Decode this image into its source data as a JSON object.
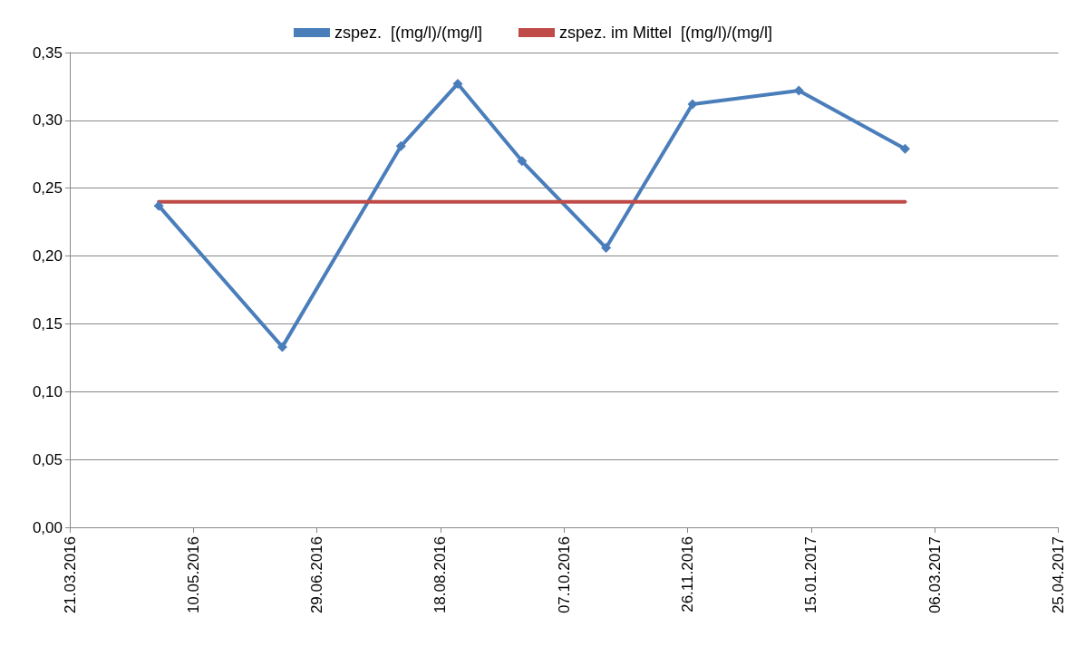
{
  "chart_data": {
    "type": "line",
    "x": [
      "2016-04-26",
      "2016-06-15",
      "2016-08-02",
      "2016-08-25",
      "2016-09-20",
      "2016-10-24",
      "2016-11-28",
      "2017-01-10",
      "2017-02-22"
    ],
    "series": [
      {
        "name": "zspez.  [(mg/l)/(mg/l]",
        "color": "#4a7ebb",
        "marker": "diamond",
        "values": [
          0.237,
          0.133,
          0.281,
          0.327,
          0.27,
          0.206,
          0.312,
          0.322,
          0.279
        ]
      },
      {
        "name": "zspez. im Mittel  [(mg/l)/(mg/l]",
        "color": "#be4b48",
        "marker": "none",
        "x": [
          "2016-04-26",
          "2017-02-22"
        ],
        "values": [
          0.24,
          0.24
        ]
      }
    ],
    "xlim": [
      "2016-03-21",
      "2017-04-25"
    ],
    "xticks": [
      {
        "value": "2016-03-21",
        "label": "21.03.2016"
      },
      {
        "value": "2016-05-10",
        "label": "10.05.2016"
      },
      {
        "value": "2016-06-29",
        "label": "29.06.2016"
      },
      {
        "value": "2016-08-18",
        "label": "18.08.2016"
      },
      {
        "value": "2016-10-07",
        "label": "07.10.2016"
      },
      {
        "value": "2016-11-26",
        "label": "26.11.2016"
      },
      {
        "value": "2017-01-15",
        "label": "15.01.2017"
      },
      {
        "value": "2017-03-06",
        "label": "06.03.2017"
      },
      {
        "value": "2017-04-25",
        "label": "25.04.2017"
      }
    ],
    "ylim": [
      0,
      0.35
    ],
    "yticks": [
      {
        "value": 0,
        "label": "0,00"
      },
      {
        "value": 0.05,
        "label": "0,05"
      },
      {
        "value": 0.1,
        "label": "0,10"
      },
      {
        "value": 0.15,
        "label": "0,15"
      },
      {
        "value": 0.2,
        "label": "0,20"
      },
      {
        "value": 0.25,
        "label": "0,25"
      },
      {
        "value": 0.3,
        "label": "0,30"
      },
      {
        "value": 0.35,
        "label": "0,35"
      }
    ],
    "grid": "y",
    "legend": "top",
    "line_style": "solid"
  }
}
